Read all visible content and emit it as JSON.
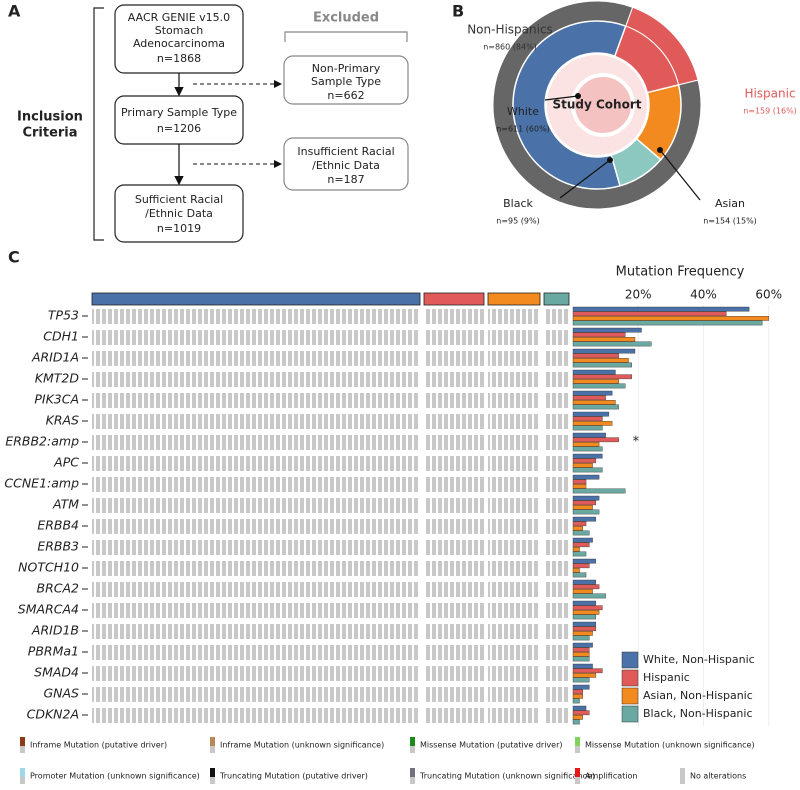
{
  "panel_labels": [
    "A",
    "B",
    "C"
  ],
  "flowchart": {
    "side_label": [
      "Inclusion",
      "Criteria"
    ],
    "excluded_label": "Excluded",
    "included": [
      [
        "AACR GENIE v15.0",
        "Stomach",
        "Adenocarcinoma",
        "n=1868"
      ],
      [
        "Primary Sample Type",
        "n=1206"
      ],
      [
        "Sufficient Racial",
        "/Ethnic Data",
        "n=1019"
      ]
    ],
    "excluded": [
      [
        "Non-Primary",
        "Sample Type",
        "n=662"
      ],
      [
        "Insufficient Racial",
        "/Ethnic Data",
        "n=187"
      ]
    ]
  },
  "chart_data": [
    {
      "type": "donut",
      "center_label": "Study Cohort",
      "outer": [
        {
          "name": "Hispanic",
          "color": "#e05a5a",
          "value": 159,
          "value_label": "n=159 (16%)"
        },
        {
          "name": "Non-Hispanics",
          "color": "#666666",
          "value": 860,
          "value_label": "n=860 (84%)"
        }
      ],
      "inner": [
        {
          "name": "Asian",
          "color": "#f28a1f",
          "value": 154,
          "value_label": "n=154 (15%)"
        },
        {
          "name": "Black",
          "color": "#8cc7c0",
          "value": 95,
          "value_label": "n=95 (9%)"
        },
        {
          "name": "White",
          "color": "#4a72a8",
          "value": 611,
          "value_label": "n=611 (60%)"
        }
      ]
    },
    {
      "type": "bar",
      "orientation": "horizontal",
      "title": "Mutation Frequency",
      "categories": [
        "TP53",
        "CDH1",
        "ARID1A",
        "KMT2D",
        "PIK3CA",
        "KRAS",
        "ERBB2:amp",
        "APC",
        "CCNE1:amp",
        "ATM",
        "ERBB4",
        "ERBB3",
        "NOTCH10",
        "BRCA2",
        "SMARCA4",
        "ARID1B",
        "PBRMa1",
        "SMAD4",
        "GNAS",
        "CDKN2A"
      ],
      "series": [
        {
          "name": "White, Non-Hispanic",
          "color": "#4a72a8",
          "values": [
            54,
            21,
            19,
            13,
            12,
            11,
            10,
            9,
            8,
            8,
            7,
            6,
            7,
            7,
            7,
            7,
            6,
            6,
            5,
            4
          ]
        },
        {
          "name": "Hispanic",
          "color": "#e05a5a",
          "values": [
            47,
            16,
            14,
            18,
            10,
            9,
            14,
            7,
            4,
            7,
            4,
            5,
            5,
            8,
            9,
            7,
            5,
            9,
            3,
            5
          ]
        },
        {
          "name": "Asian, Non-Hispanic",
          "color": "#f28a1f",
          "values": [
            60,
            19,
            17,
            14,
            13,
            12,
            8,
            6,
            4,
            6,
            3,
            2,
            2,
            6,
            8,
            6,
            5,
            7,
            3,
            3
          ]
        },
        {
          "name": "Black, Non-Hispanic",
          "color": "#6aa9a2",
          "values": [
            58,
            24,
            18,
            16,
            14,
            9,
            9,
            9,
            16,
            8,
            5,
            4,
            4,
            10,
            7,
            5,
            5,
            5,
            2,
            2
          ]
        }
      ],
      "xlim": [
        0,
        65
      ],
      "xticks": [
        {
          "value": 20,
          "label": "20%"
        },
        {
          "value": 40,
          "value_label": null,
          "label": "40%"
        },
        {
          "value": 60,
          "label": "60%"
        }
      ],
      "grid": true,
      "annotations": [
        {
          "category_index": 6,
          "text": "*"
        }
      ]
    }
  ],
  "alteration_legend": [
    {
      "label": "Inframe Mutation (putative driver)",
      "color": "#8b3a1a"
    },
    {
      "label": "Inframe Mutation (unknown significance)",
      "color": "#b8875a"
    },
    {
      "label": "Missense Mutation (putative driver)",
      "color": "#1a8a1a"
    },
    {
      "label": "Missense Mutation (unknown significance)",
      "color": "#7fd35a"
    },
    {
      "label": "Promoter Mutation (unknown significance)",
      "color": "#9fd8e8"
    },
    {
      "label": "Truncating Mutation (putative driver)",
      "color": "#111111"
    },
    {
      "label": "Truncating Mutation (unknown significance)",
      "color": "#707080"
    },
    {
      "label": "Amplification",
      "color": "#e81818"
    },
    {
      "label": "No alterations",
      "color": "#c8c8c8"
    }
  ]
}
